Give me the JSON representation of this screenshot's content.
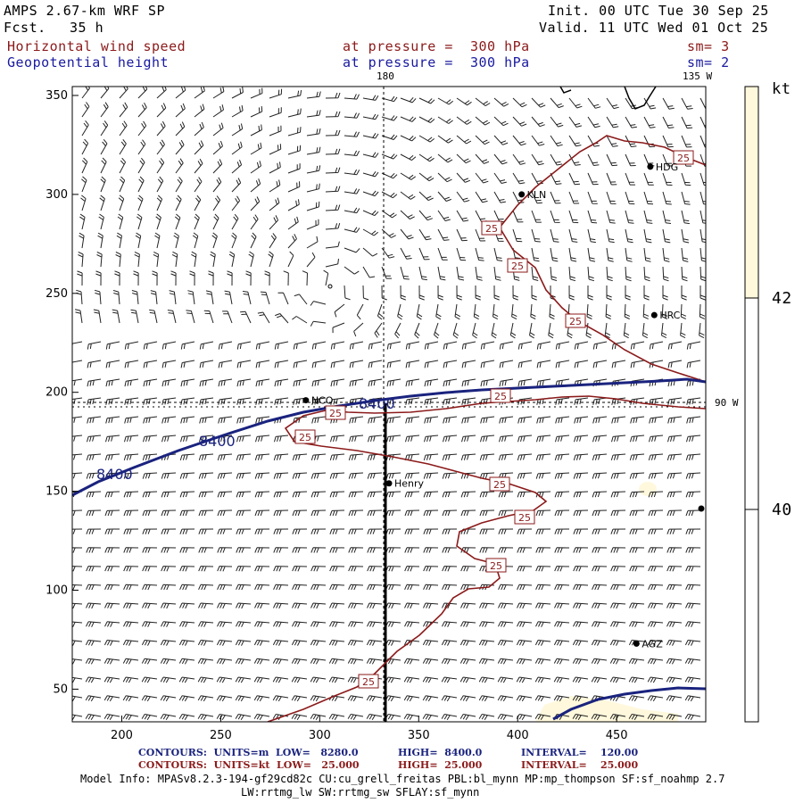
{
  "header": {
    "model": "AMPS 2.67-km WRF SP",
    "fcst_label": "Fcst.",
    "fcst_value": "35 h",
    "init": "Init. 00 UTC Tue 30 Sep 25",
    "valid": "Valid. 11 UTC Wed 01 Oct 25",
    "field1": "Horizontal wind speed",
    "field1_level": "at pressure =  300 hPa",
    "field1_sm": "sm= 3",
    "field2": "Geopotential height",
    "field2_level": "at pressure =  300 hPa",
    "field2_sm": "sm= 2"
  },
  "map": {
    "meridian_label": "180",
    "corner_label": "135 W",
    "parallel_label": "90 W",
    "x_ticks": [
      "200",
      "250",
      "300",
      "350",
      "400",
      "450"
    ],
    "y_ticks": [
      "50",
      "100",
      "150",
      "200",
      "250",
      "300",
      "350"
    ],
    "stations": [
      {
        "name": "HDG",
        "x": 467,
        "y": 314
      },
      {
        "name": "KLN",
        "x": 402,
        "y": 300
      },
      {
        "name": "HRC",
        "x": 469,
        "y": 239
      },
      {
        "name": "NCO",
        "x": 293,
        "y": 196
      },
      {
        "name": "Henry",
        "x": 335,
        "y": 154
      },
      {
        "name": "AGZ",
        "x": 460,
        "y": 73
      }
    ],
    "height_contour_label": "8400",
    "speed_contour_label": "25",
    "colors": {
      "height": "#1a237e",
      "speed": "#8b1a1a",
      "shade": "#fff8dc"
    }
  },
  "colorbar": {
    "unit": "kt",
    "labels": [
      "42",
      "40"
    ]
  },
  "footer": {
    "line1_a": "CONTOURS:  UNITS=m  LOW=   8280.0",
    "line1_b": "HIGH=  8400.0",
    "line1_c": "INTERVAL=    120.00",
    "line2_a": "CONTOURS:  UNITS=kt  LOW=   25.000",
    "line2_b": "HIGH=  25.000",
    "line2_c": "INTERVAL=    25.000",
    "model_info": "Model Info: MPASv8.2.3-194-gf29cd82c CU:cu_grell_freitas PBL:bl_mynn MP:mp_thompson SF:sf_noahmp 2.7",
    "model_info2": "LW:rrtmg_lw SW:rrtmg_sw SFLAY:sf_mynn"
  }
}
